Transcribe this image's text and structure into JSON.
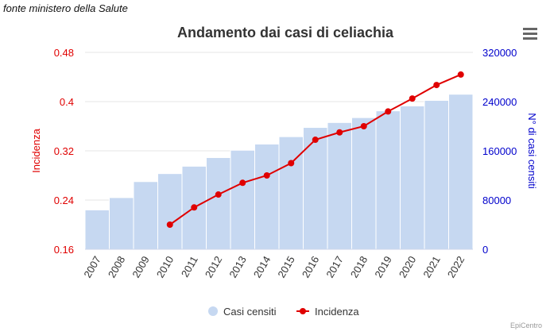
{
  "source_note": "fonte ministero della Salute",
  "credits": "EpiCentro",
  "menu_icon": "hamburger-menu-icon",
  "colors": {
    "bars": "#c6d8f1",
    "line": "#e00000",
    "left_axis": "#e00000",
    "right_axis": "#0000cc"
  },
  "chart_data": {
    "type": "bar",
    "title": "Andamento dai casi di celiachia",
    "categories": [
      "2007",
      "2008",
      "2009",
      "2010",
      "2011",
      "2012",
      "2013",
      "2014",
      "2015",
      "2016",
      "2017",
      "2018",
      "2019",
      "2020",
      "2021",
      "2022"
    ],
    "left_axis": {
      "label": "Incidenza",
      "ticks": [
        "0.16",
        "0.24",
        "0.32",
        "0.4",
        "0.48"
      ],
      "range": [
        0.16,
        0.48
      ]
    },
    "right_axis": {
      "label": "N° di casi censiti",
      "ticks": [
        "0",
        "80000",
        "160000",
        "240000",
        "320000"
      ],
      "range": [
        0,
        320000
      ]
    },
    "series": [
      {
        "name": "Casi censiti",
        "type": "bar",
        "axis": "right",
        "values": [
          64000,
          84000,
          110000,
          123000,
          135000,
          149000,
          161000,
          171000,
          183000,
          198000,
          206000,
          214000,
          225000,
          233000,
          242000,
          252000
        ]
      },
      {
        "name": "Incidenza",
        "type": "line",
        "axis": "left",
        "values": [
          null,
          null,
          null,
          0.2,
          0.228,
          0.249,
          0.268,
          0.28,
          0.3,
          0.338,
          0.35,
          0.36,
          0.384,
          0.405,
          0.427,
          0.444
        ]
      }
    ],
    "legend_position": "bottom",
    "grid": true
  }
}
